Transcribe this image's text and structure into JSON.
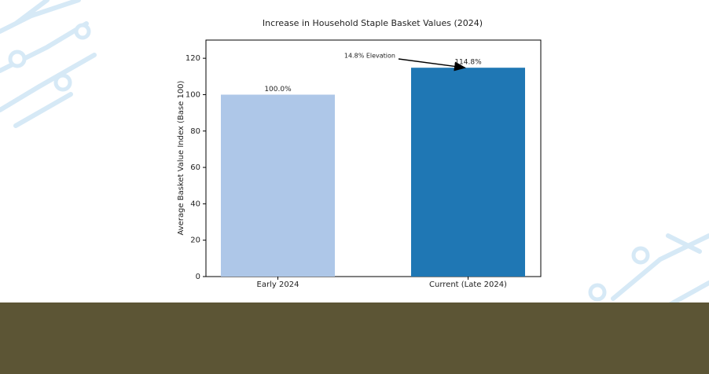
{
  "chart_data": {
    "type": "bar",
    "title": "Increase in Household Staple Basket Values (2024)",
    "y_label": "Average Basket Value Index (Base 100)",
    "categories": [
      "Early 2024",
      "Current (Late 2024)"
    ],
    "values": [
      100,
      114.8
    ],
    "value_labels": [
      "100.0%",
      "114.8%"
    ],
    "colors": [
      "#aec7e8",
      "#1f77b4"
    ],
    "annotation": "14.8% Elevation",
    "ylim": [
      0,
      130
    ],
    "yticks": [
      0,
      20,
      40,
      60,
      80,
      100,
      120
    ],
    "grid": false
  }
}
